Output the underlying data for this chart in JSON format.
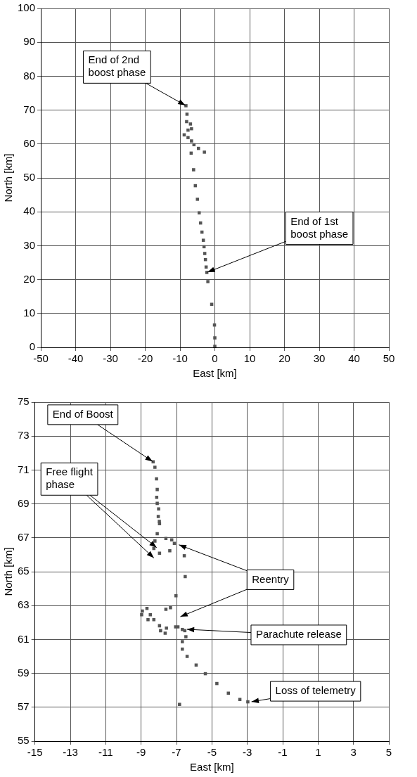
{
  "chart_data": [
    {
      "type": "scatter",
      "xlabel": "East [km]",
      "ylabel": "North [km]",
      "xlim": [
        -50,
        50
      ],
      "xticks": [
        -50,
        -40,
        -30,
        -20,
        -10,
        0,
        10,
        20,
        30,
        40,
        50
      ],
      "ylim": [
        0,
        100
      ],
      "yticks": [
        0,
        10,
        20,
        30,
        40,
        50,
        60,
        70,
        80,
        90,
        100
      ],
      "grid": true,
      "legend": false,
      "marker": "square",
      "series": [
        {
          "color": "#555555",
          "x": [
            -8.3,
            -8.0,
            -8.1,
            -7.0,
            -6.7,
            -7.7,
            -8.8,
            -7.7,
            -6.7,
            -6.0,
            -4.7,
            -3.0,
            -6.8,
            -6.1,
            -5.6,
            -5.0,
            -4.5,
            -4.1,
            -3.7,
            -3.3,
            -3.1,
            -2.9,
            -2.7,
            -2.5,
            -2.3,
            -2.0,
            -0.9,
            -0.1,
            0,
            0
          ],
          "values": [
            71.3,
            68.8,
            66.6,
            65.9,
            64.5,
            64.1,
            62.7,
            61.9,
            60.9,
            59.8,
            58.7,
            57.6,
            57.3,
            52.4,
            47.7,
            43.7,
            39.7,
            36.7,
            34.0,
            31.6,
            29.7,
            27.7,
            25.9,
            23.7,
            22.1,
            19.4,
            12.7,
            6.6,
            2.8,
            0.3
          ]
        }
      ],
      "annotations": [
        {
          "text": "End of 2nd boost phase",
          "x": -8.3,
          "y": 71.3
        },
        {
          "text": "End of 1st boost phase",
          "x": -2.3,
          "y": 22.1
        }
      ]
    },
    {
      "type": "scatter",
      "xlabel": "East [km]",
      "ylabel": "North [km]",
      "xlim": [
        -15,
        5
      ],
      "xticks": [
        -15,
        -13,
        -11,
        -9,
        -7,
        -5,
        -3,
        -1,
        1,
        3,
        5
      ],
      "ylim": [
        55,
        75
      ],
      "yticks": [
        55,
        57,
        59,
        61,
        63,
        65,
        67,
        69,
        71,
        73,
        75
      ],
      "grid": true,
      "legend": false,
      "marker": "square",
      "series": [
        {
          "color": "#555555",
          "x": [
            -8.32,
            -8.22,
            -8.13,
            -8.09,
            -8.12,
            -8.09,
            -8.01,
            -8.03,
            -7.96,
            -7.97,
            -8.09,
            -8.22,
            -8.28,
            -7.96,
            -7.6,
            -7.27,
            -7.12,
            -7.38,
            -6.56,
            -6.51,
            -7.03,
            -7.34,
            -7.6,
            -8.93,
            -8.97,
            -8.67,
            -8.48,
            -8.28,
            -7.96,
            -7.57,
            -7.05,
            -6.67,
            -8.61,
            -7.9,
            -7.64,
            -6.92,
            -6.53,
            -6.47,
            -6.67,
            -6.67,
            -6.4,
            -5.89,
            -5.37,
            -4.72,
            -4.07,
            -3.42,
            -2.97,
            -6.83
          ],
          "values": [
            71.48,
            71.16,
            70.48,
            69.85,
            69.39,
            69.03,
            68.7,
            68.26,
            67.83,
            67.97,
            67.24,
            66.81,
            66.37,
            66.09,
            66.96,
            66.88,
            66.67,
            66.23,
            65.94,
            64.71,
            63.58,
            62.87,
            62.78,
            62.68,
            62.46,
            62.83,
            62.46,
            62.17,
            61.81,
            61.67,
            61.74,
            61.59,
            62.17,
            61.52,
            61.37,
            61.74,
            61.52,
            61.16,
            60.87,
            60.43,
            60.0,
            59.49,
            58.98,
            58.4,
            57.83,
            57.46,
            57.32,
            57.17
          ]
        }
      ],
      "annotations": [
        {
          "text": "End of Boost",
          "x": -8.32,
          "y": 71.48
        },
        {
          "text": "Free flight phase",
          "x": -8.09,
          "y": 66.4
        },
        {
          "text": "Reentry",
          "x": -6.9,
          "y": 66.6
        },
        {
          "text": "Parachute release",
          "x": -6.45,
          "y": 61.6
        },
        {
          "text": "Loss of telemetry",
          "x": -2.8,
          "y": 57.32
        }
      ]
    }
  ]
}
